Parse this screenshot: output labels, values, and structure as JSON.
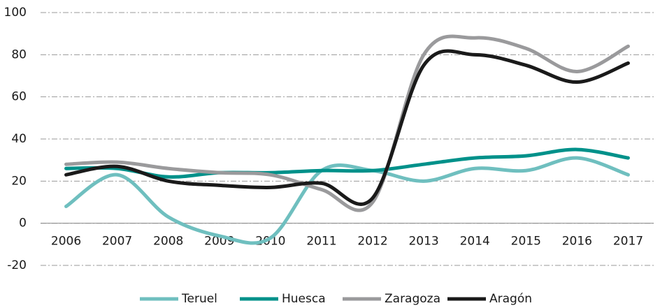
{
  "chart_data": {
    "type": "line",
    "categories": [
      "2006",
      "2007",
      "2008",
      "2009",
      "2010",
      "2011",
      "2012",
      "2013",
      "2014",
      "2015",
      "2016",
      "2017"
    ],
    "series": [
      {
        "name": "Teruel",
        "color": "#6fbfbf",
        "values": [
          8,
          23,
          3,
          -6,
          -7,
          25,
          25,
          20,
          26,
          25,
          31,
          23
        ]
      },
      {
        "name": "Huesca",
        "color": "#00918a",
        "values": [
          26,
          26,
          22,
          24,
          24,
          25,
          25,
          28,
          31,
          32,
          35,
          31
        ]
      },
      {
        "name": "Zaragoza",
        "color": "#9a9a9c",
        "values": [
          28,
          29,
          26,
          24,
          23,
          16,
          10,
          80,
          88,
          83,
          72,
          84
        ]
      },
      {
        "name": "Aragón",
        "color": "#1a1a1a",
        "values": [
          23,
          27,
          20,
          18,
          17,
          19,
          12,
          75,
          80,
          75,
          67,
          76
        ]
      }
    ],
    "ylim": [
      -20,
      100
    ],
    "yticks": [
      -20,
      0,
      20,
      40,
      60,
      80,
      100
    ],
    "grid": true,
    "legend": "bottom"
  }
}
